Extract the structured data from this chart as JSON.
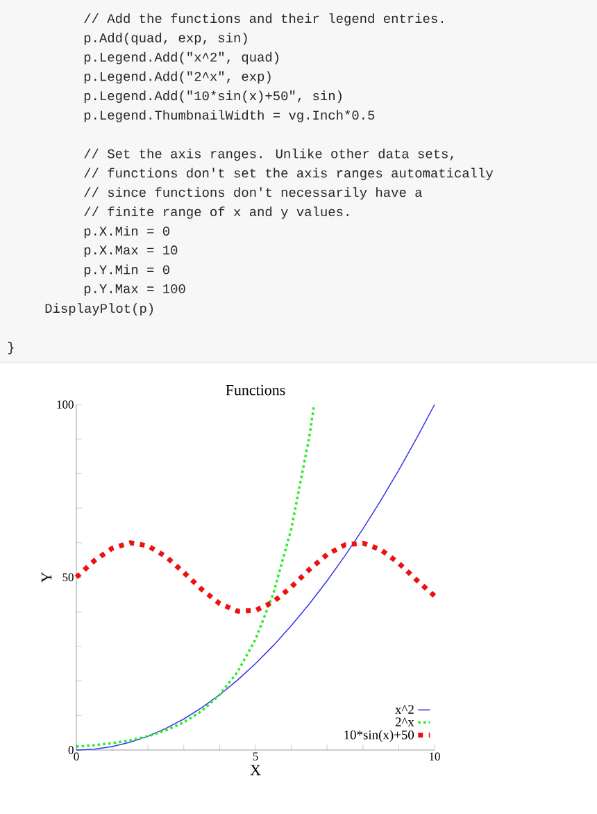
{
  "chart_data": {
    "type": "line",
    "title": "Functions",
    "xlabel": "X",
    "ylabel": "Y",
    "annotations": [
      "// Add the functions and their legend entries.",
      "p.Add(quad, exp, sin)",
      "p.Legend.Add(\"x^2\", quad)",
      "p.Legend.Add(\"2^x\", exp)",
      "p.Legend.Add(\"10*sin(x)+50\", sin)",
      "p.Legend.ThumbnailWidth = vg.Inch*0.5",
      "// Set the axis ranges.  Unlike other data sets,",
      "// functions don't set the axis ranges automatically",
      "// since functions don't necessarily have a",
      "// finite range of x and y values.",
      "p.X.Min = 0",
      "p.X.Max = 10",
      "p.Y.Min = 0",
      "p.Y.Max = 100",
      "DisplayPlot(p)",
      "}"
    ],
    "xlim": [
      0,
      10
    ],
    "ylim": [
      0,
      100
    ],
    "xticks": [
      0,
      {
        "value": 1,
        "label": null
      },
      {
        "value": 2,
        "label": null
      },
      {
        "value": 3,
        "label": null
      },
      {
        "value": 4,
        "label": null
      },
      5,
      {
        "value": 6,
        "label": null
      },
      {
        "value": 7,
        "label": null
      },
      {
        "value": 8,
        "label": null
      },
      {
        "value": 9,
        "label": null
      },
      10
    ],
    "yticks": [
      0,
      {
        "value": 10,
        "label": null
      },
      {
        "value": 20,
        "label": null
      },
      {
        "value": 30,
        "label": null
      },
      {
        "value": 40,
        "label": null
      },
      50,
      {
        "value": 60,
        "label": null
      },
      {
        "value": 70,
        "label": null
      },
      {
        "value": 80,
        "label": null
      },
      {
        "value": 90,
        "label": null
      },
      100
    ],
    "legend": "bottom right",
    "grid": false,
    "series": [
      {
        "name": "x^2",
        "color": "#3333ee",
        "line_style": "solid",
        "x": [
          0,
          0.5,
          1,
          1.5,
          2,
          2.5,
          3,
          3.5,
          4,
          4.5,
          5,
          5.5,
          6,
          6.5,
          7,
          7.5,
          8,
          8.5,
          9,
          9.5,
          10
        ],
        "values": [
          0,
          0.25,
          1,
          2.25,
          4,
          6.25,
          9,
          12.25,
          16,
          20.25,
          25,
          30.25,
          36,
          42.25,
          49,
          56.25,
          64,
          72.25,
          81,
          90.25,
          100
        ]
      },
      {
        "name": "2^x",
        "color": "#22ee22",
        "line_style": "dotted",
        "x": [
          0,
          0.5,
          1,
          1.5,
          2,
          2.5,
          3,
          3.5,
          4,
          4.5,
          5,
          5.5,
          6,
          6.5,
          6.64
        ],
        "values": [
          1,
          1.4,
          2,
          2.8,
          4,
          5.7,
          8,
          11.3,
          16,
          22.6,
          32,
          45.3,
          64,
          90.5,
          100
        ]
      },
      {
        "name": "10*sin(x)+50",
        "color": "#ee1111",
        "line_style": "dotted",
        "x": [
          0,
          0.5,
          1,
          1.5,
          2,
          2.5,
          3,
          3.5,
          4,
          4.5,
          5,
          5.5,
          6,
          6.5,
          7,
          7.5,
          8,
          8.5,
          9,
          9.5,
          10
        ],
        "values": [
          50,
          54.8,
          58.4,
          60,
          59.1,
          56,
          51.4,
          46.5,
          42.4,
          40.2,
          40.4,
          42.9,
          47.2,
          52.2,
          56.6,
          59.4,
          59.9,
          58,
          54.1,
          49.2,
          44.6
        ]
      }
    ]
  }
}
